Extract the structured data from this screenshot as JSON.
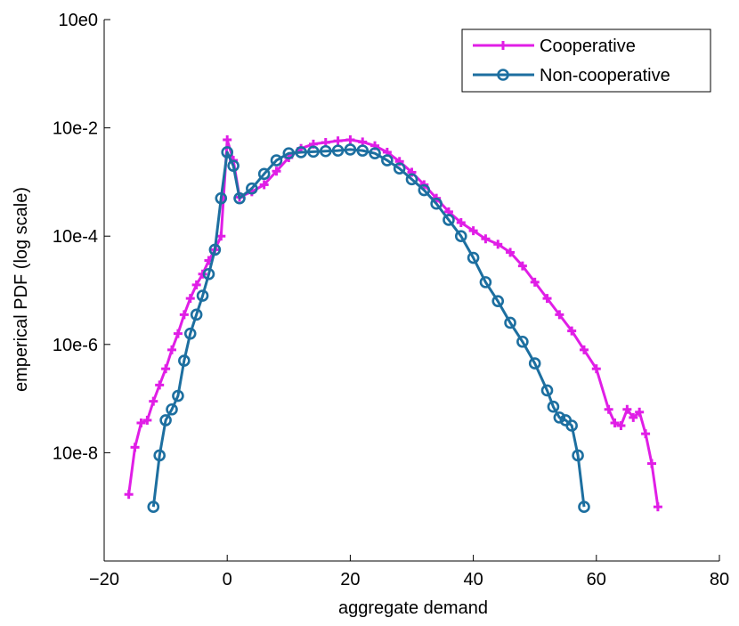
{
  "chart_data": {
    "type": "line",
    "title": "",
    "xlabel": "aggregate demand",
    "ylabel": "emperical PDF (log scale)",
    "xlim": [
      -20,
      80
    ],
    "ylim_log10": [
      -10,
      0
    ],
    "y_scale": "log",
    "x_ticks": [
      -20,
      0,
      20,
      40,
      60,
      80
    ],
    "x_tick_labels": [
      "−20",
      "0",
      "20",
      "40",
      "60",
      "80"
    ],
    "y_ticks_log10": [
      0,
      -2,
      -4,
      -6,
      -8
    ],
    "y_tick_labels": [
      "10e0",
      "10e-2",
      "10e-4",
      "10e-6",
      "10e-8"
    ],
    "grid": false,
    "legend_position": "top-right",
    "series": [
      {
        "name": "Cooperative",
        "color": "#e01ee6",
        "marker": "plus",
        "x": [
          -16,
          -15,
          -14,
          -13,
          -12,
          -11,
          -10,
          -9,
          -8,
          -7,
          -6,
          -5,
          -4,
          -3,
          -2,
          -1,
          0,
          1,
          2,
          4,
          6,
          8,
          10,
          12,
          14,
          16,
          18,
          20,
          22,
          24,
          26,
          28,
          30,
          32,
          34,
          36,
          38,
          40,
          42,
          44,
          46,
          48,
          50,
          52,
          54,
          56,
          58,
          60,
          62,
          63,
          64,
          65,
          66,
          67,
          68,
          69,
          70
        ],
        "log10_y": [
          -8.77,
          -7.9,
          -7.45,
          -7.4,
          -7.05,
          -6.75,
          -6.45,
          -6.1,
          -5.8,
          -5.45,
          -5.15,
          -4.9,
          -4.7,
          -4.45,
          -4.25,
          -4.0,
          -2.22,
          -2.6,
          -3.28,
          -3.18,
          -3.05,
          -2.8,
          -2.55,
          -2.38,
          -2.3,
          -2.27,
          -2.24,
          -2.22,
          -2.26,
          -2.33,
          -2.45,
          -2.62,
          -2.82,
          -3.05,
          -3.3,
          -3.55,
          -3.75,
          -3.9,
          -4.05,
          -4.15,
          -4.3,
          -4.55,
          -4.85,
          -5.15,
          -5.45,
          -5.75,
          -6.1,
          -6.45,
          -7.2,
          -7.45,
          -7.5,
          -7.2,
          -7.35,
          -7.25,
          -7.65,
          -8.2,
          -9.0
        ],
        "scatter_x": [
          -16,
          -15,
          -14,
          -13,
          -12,
          -11,
          -10,
          -9,
          -8,
          -7,
          -6,
          -5,
          -4,
          -3,
          -2,
          -1,
          0,
          1,
          2,
          4,
          6,
          8,
          10,
          12,
          14,
          16,
          18,
          20,
          22,
          24,
          26,
          28,
          30,
          32,
          34,
          36,
          38,
          40,
          42,
          44,
          46,
          48,
          50,
          52,
          54,
          56,
          58,
          60,
          62,
          63,
          64,
          65,
          66,
          67,
          68,
          69,
          70
        ],
        "scatter_log10_y": [
          -8.77,
          -7.9,
          -7.45,
          -7.4,
          -7.05,
          -6.75,
          -6.45,
          -6.1,
          -5.8,
          -5.45,
          -5.15,
          -4.9,
          -4.7,
          -4.45,
          -4.25,
          -4.0,
          -2.22,
          -2.6,
          -3.28,
          -3.18,
          -3.05,
          -2.8,
          -2.55,
          -2.38,
          -2.3,
          -2.27,
          -2.24,
          -2.22,
          -2.26,
          -2.33,
          -2.45,
          -2.62,
          -2.82,
          -3.05,
          -3.3,
          -3.55,
          -3.75,
          -3.9,
          -4.05,
          -4.15,
          -4.3,
          -4.55,
          -4.85,
          -5.15,
          -5.45,
          -5.75,
          -6.1,
          -6.45,
          -7.2,
          -7.45,
          -7.5,
          -7.2,
          -7.35,
          -7.25,
          -7.65,
          -8.2,
          -9.0
        ]
      },
      {
        "name": "Non-cooperative",
        "color": "#1d6fa0",
        "marker": "circle",
        "x": [
          -12,
          -11,
          -10,
          -9,
          -8,
          -7,
          -6,
          -5,
          -4,
          -3,
          -2,
          -1,
          0,
          1,
          2,
          4,
          6,
          8,
          10,
          12,
          14,
          16,
          18,
          20,
          22,
          24,
          26,
          28,
          30,
          32,
          34,
          36,
          38,
          40,
          42,
          44,
          46,
          48,
          50,
          52,
          53,
          54,
          55,
          56,
          57,
          58
        ],
        "log10_y": [
          -9.0,
          -8.05,
          -7.4,
          -7.2,
          -6.95,
          -6.3,
          -5.8,
          -5.45,
          -5.1,
          -4.7,
          -4.25,
          -3.3,
          -2.45,
          -2.7,
          -3.3,
          -3.12,
          -2.85,
          -2.6,
          -2.47,
          -2.45,
          -2.44,
          -2.43,
          -2.42,
          -2.4,
          -2.42,
          -2.47,
          -2.6,
          -2.75,
          -2.95,
          -3.15,
          -3.4,
          -3.7,
          -4.0,
          -4.4,
          -4.85,
          -5.2,
          -5.6,
          -5.95,
          -6.35,
          -6.85,
          -7.15,
          -7.35,
          -7.4,
          -7.5,
          -8.05,
          -9.0
        ]
      }
    ]
  }
}
